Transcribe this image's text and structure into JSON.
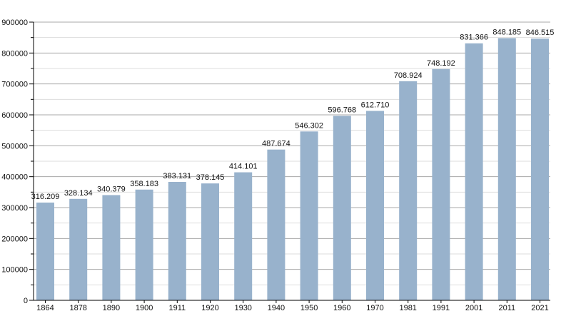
{
  "chart_data": {
    "type": "bar",
    "title": "",
    "xlabel": "",
    "ylabel": "",
    "ylim": [
      0,
      900000
    ],
    "yticks": [
      0,
      100000,
      200000,
      300000,
      400000,
      500000,
      600000,
      700000,
      800000,
      900000
    ],
    "ytick_labels": [
      "0",
      "100000",
      "200000",
      "300000",
      "400000",
      "500000",
      "600000",
      "700000",
      "800000",
      "900000"
    ],
    "grid": true,
    "categories": [
      "1864",
      "1878",
      "1890",
      "1900",
      "1911",
      "1920",
      "1930",
      "1940",
      "1950",
      "1960",
      "1970",
      "1981",
      "1991",
      "2001",
      "2011",
      "2021"
    ],
    "values": [
      316209,
      328134,
      340379,
      358183,
      383131,
      378145,
      414101,
      487674,
      546302,
      596768,
      612710,
      708924,
      748192,
      831366,
      848185,
      846515
    ],
    "data_labels": [
      "316.209",
      "328.134",
      "340.379",
      "358.183",
      "383.131",
      "378.145",
      "414.101",
      "487.674",
      "546.302",
      "596.768",
      "612.710",
      "708.924",
      "748.192",
      "831.366",
      "848.185",
      "846.515"
    ],
    "bar_color": "#98b2cc",
    "major_grid_color": "#a8a8a8",
    "minor_grid_color": "#dddddd"
  }
}
